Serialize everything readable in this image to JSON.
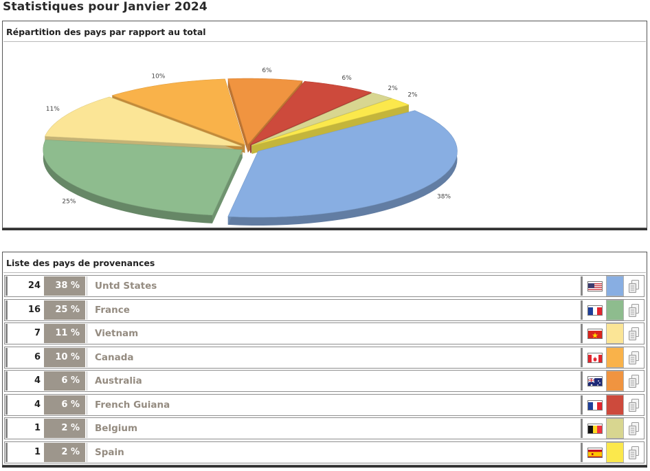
{
  "page_title": "Statistiques pour Janvier 2024",
  "chart_panel": {
    "title": "Répartition des pays par rapport au total"
  },
  "list_panel": {
    "title": "Liste des pays de provenances"
  },
  "chart_data": {
    "type": "pie",
    "title": "Répartition des pays par rapport au total",
    "slices": [
      {
        "label": "38%",
        "value": 38,
        "country": "Untd States",
        "color": "#88aee2"
      },
      {
        "label": "25%",
        "value": 25,
        "country": "France",
        "color": "#8ebc8e"
      },
      {
        "label": "11%",
        "value": 11,
        "country": "Vietnam",
        "color": "#fbe596"
      },
      {
        "label": "10%",
        "value": 10,
        "country": "Canada",
        "color": "#f9b24a"
      },
      {
        "label": "6%",
        "value": 6,
        "country": "Australia",
        "color": "#f09440"
      },
      {
        "label": "6%",
        "value": 6,
        "country": "French Guiana",
        "color": "#cd4a3c"
      },
      {
        "label": "2%",
        "value": 2,
        "country": "Belgium",
        "color": "#d8d690"
      },
      {
        "label": "2%",
        "value": 2,
        "country": "Spain",
        "color": "#fbe84c"
      }
    ]
  },
  "rows": [
    {
      "count": "24",
      "pct": "38 %",
      "country": "Untd States",
      "flag": "us-flag-icon",
      "color": "#88aee2"
    },
    {
      "count": "16",
      "pct": "25 %",
      "country": "France",
      "flag": "fr-flag-icon",
      "color": "#8ebc8e"
    },
    {
      "count": "7",
      "pct": "11 %",
      "country": "Vietnam",
      "flag": "vn-flag-icon",
      "color": "#fbe596"
    },
    {
      "count": "6",
      "pct": "10 %",
      "country": "Canada",
      "flag": "ca-flag-icon",
      "color": "#f9b24a"
    },
    {
      "count": "4",
      "pct": "6 %",
      "country": "Australia",
      "flag": "au-flag-icon",
      "color": "#f09440"
    },
    {
      "count": "4",
      "pct": "6 %",
      "country": "French Guiana",
      "flag": "gf-flag-icon",
      "color": "#cd4a3c"
    },
    {
      "count": "1",
      "pct": "2 %",
      "country": "Belgium",
      "flag": "be-flag-icon",
      "color": "#d8d690"
    },
    {
      "count": "1",
      "pct": "2 %",
      "country": "Spain",
      "flag": "es-flag-icon",
      "color": "#fbe84c"
    }
  ]
}
